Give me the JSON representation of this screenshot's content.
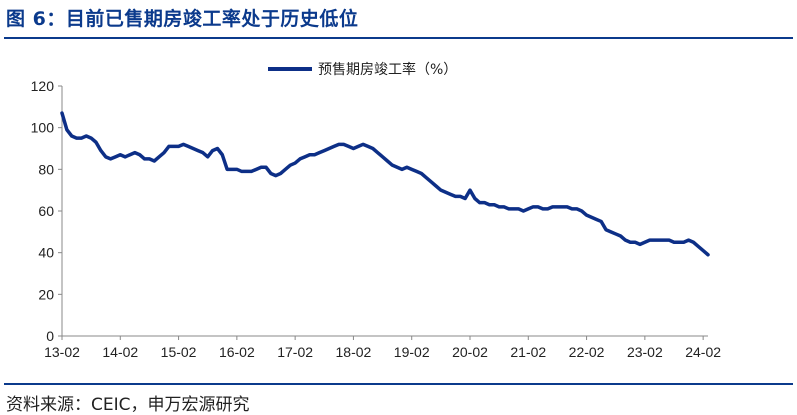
{
  "title": "图 6：目前已售期房竣工率处于历史低位",
  "source": "资料来源：CEIC，申万宏源研究",
  "colors": {
    "accent": "#0b3a8c",
    "line": "#0d2f87",
    "axis": "#888888"
  },
  "chart_data": {
    "type": "line",
    "title": "",
    "xlabel": "",
    "ylabel": "",
    "ylim": [
      0,
      120
    ],
    "yticks": [
      0,
      20,
      40,
      60,
      80,
      100,
      120
    ],
    "grid": false,
    "legend": "top-center",
    "x_tick_labels": [
      "13-02",
      "14-02",
      "15-02",
      "16-02",
      "17-02",
      "18-02",
      "19-02",
      "20-02",
      "21-02",
      "22-02",
      "23-02",
      "24-02"
    ],
    "series": [
      {
        "name": "预售期房竣工率（%）",
        "x_start": "13-02",
        "frequency": "monthly",
        "values": [
          107,
          99,
          96,
          95,
          95,
          96,
          95,
          93,
          89,
          86,
          85,
          86,
          87,
          86,
          87,
          88,
          87,
          85,
          85,
          84,
          86,
          88,
          91,
          91,
          91,
          92,
          91,
          90,
          89,
          88,
          86,
          89,
          90,
          87,
          80,
          80,
          80,
          79,
          79,
          79,
          80,
          81,
          81,
          78,
          77,
          78,
          80,
          82,
          83,
          85,
          86,
          87,
          87,
          88,
          89,
          90,
          91,
          92,
          92,
          91,
          90,
          91,
          92,
          91,
          90,
          88,
          86,
          84,
          82,
          81,
          80,
          81,
          80,
          79,
          78,
          76,
          74,
          72,
          70,
          69,
          68,
          67,
          67,
          66,
          70,
          66,
          64,
          64,
          63,
          63,
          62,
          62,
          61,
          61,
          61,
          60,
          61,
          62,
          62,
          61,
          61,
          62,
          62,
          62,
          62,
          61,
          61,
          60,
          58,
          57,
          56,
          55,
          51,
          50,
          49,
          48,
          46,
          45,
          45,
          44,
          45,
          46,
          46,
          46,
          46,
          46,
          45,
          45,
          45,
          46,
          45,
          43,
          41,
          39
        ]
      }
    ]
  }
}
